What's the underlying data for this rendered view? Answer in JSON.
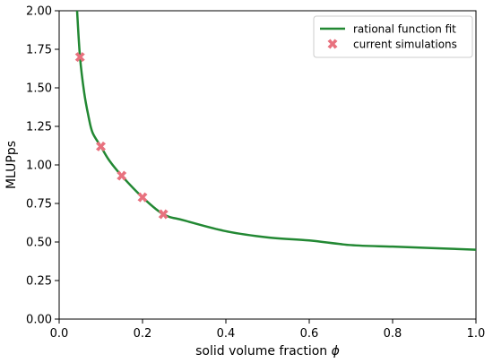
{
  "chart_data": {
    "type": "line",
    "xlabel": "solid volume fraction",
    "xlabel_symbol": "ϕ",
    "ylabel": "MLUPps",
    "xlim": [
      0.0,
      1.0
    ],
    "ylim": [
      0.0,
      2.0
    ],
    "xticks": [
      "0.0",
      "0.2",
      "0.4",
      "0.6",
      "0.8",
      "1.0"
    ],
    "yticks": [
      "0.00",
      "0.25",
      "0.50",
      "0.75",
      "1.00",
      "1.25",
      "1.50",
      "1.75",
      "2.00"
    ],
    "grid": false,
    "legend_position": "top-right",
    "series": [
      {
        "name": "rational function fit",
        "kind": "line",
        "color": "#228833",
        "x": [
          0.043,
          0.05,
          0.06,
          0.07,
          0.08,
          0.1,
          0.12,
          0.15,
          0.2,
          0.25,
          0.3,
          0.4,
          0.5,
          0.6,
          0.7,
          0.8,
          0.9,
          1.0
        ],
        "y": [
          2.0,
          1.7,
          1.47,
          1.32,
          1.21,
          1.12,
          1.03,
          0.93,
          0.79,
          0.68,
          0.64,
          0.57,
          0.53,
          0.51,
          0.48,
          0.47,
          0.46,
          0.45
        ]
      },
      {
        "name": "current simulations",
        "kind": "scatter",
        "marker": "X",
        "color": "#e8717e",
        "x": [
          0.05,
          0.1,
          0.15,
          0.2,
          0.25
        ],
        "y": [
          1.7,
          1.12,
          0.93,
          0.79,
          0.68
        ]
      }
    ]
  }
}
